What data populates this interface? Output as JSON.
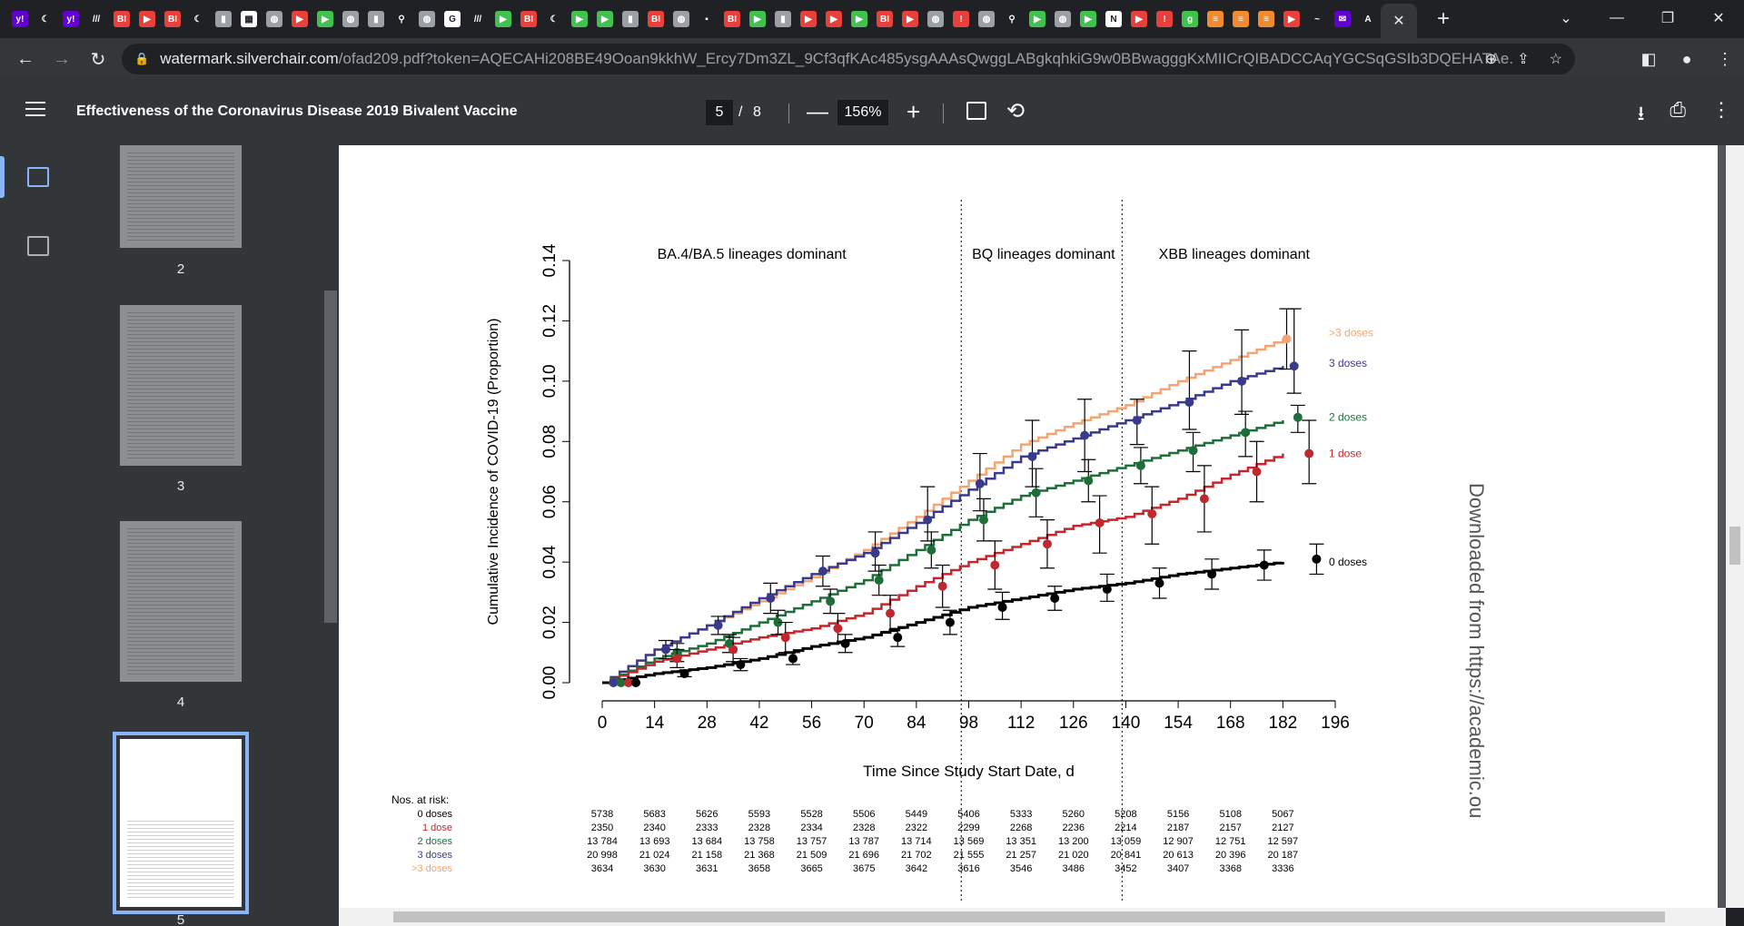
{
  "browser": {
    "tabs": [
      {
        "icon": "yahoo-icon",
        "color": "#6001d2",
        "glyph": "y!"
      },
      {
        "icon": "crescent-icon",
        "color": "#202124",
        "glyph": "☾"
      },
      {
        "icon": "yahoo-icon",
        "color": "#6001d2",
        "glyph": "y!"
      },
      {
        "icon": "stripes-icon",
        "color": "#202124",
        "glyph": "///"
      },
      {
        "icon": "business-insider-icon",
        "color": "#e8403a",
        "glyph": "BI"
      },
      {
        "icon": "youtube-icon",
        "color": "#e8403a",
        "glyph": "▶"
      },
      {
        "icon": "business-insider-icon",
        "color": "#e8403a",
        "glyph": "BI"
      },
      {
        "icon": "crescent-icon",
        "color": "#202124",
        "glyph": "☾"
      },
      {
        "icon": "bookmark-flag-icon",
        "color": "#9aa0a6",
        "glyph": "▮"
      },
      {
        "icon": "grid-icon",
        "color": "#ffffff",
        "glyph": "▦"
      },
      {
        "icon": "globe-icon",
        "color": "#9aa0a6",
        "glyph": "◍"
      },
      {
        "icon": "youtube-icon",
        "color": "#e8403a",
        "glyph": "▶"
      },
      {
        "icon": "play-icon",
        "color": "#41c24f",
        "glyph": "▶"
      },
      {
        "icon": "globe-icon",
        "color": "#9aa0a6",
        "glyph": "◍"
      },
      {
        "icon": "bookmark-flag-icon",
        "color": "#9aa0a6",
        "glyph": "▮"
      },
      {
        "icon": "search-icon",
        "color": "#202124",
        "glyph": "⚲"
      },
      {
        "icon": "globe-icon",
        "color": "#9aa0a6",
        "glyph": "◍"
      },
      {
        "icon": "google-icon",
        "color": "#ffffff",
        "glyph": "G"
      },
      {
        "icon": "stripes-icon",
        "color": "#202124",
        "glyph": "///"
      },
      {
        "icon": "play-icon",
        "color": "#41c24f",
        "glyph": "▶"
      },
      {
        "icon": "business-insider-icon",
        "color": "#e8403a",
        "glyph": "BI"
      },
      {
        "icon": "crescent-icon",
        "color": "#202124",
        "glyph": "☾"
      },
      {
        "icon": "play-icon",
        "color": "#41c24f",
        "glyph": "▶"
      },
      {
        "icon": "play-icon",
        "color": "#41c24f",
        "glyph": "▶"
      },
      {
        "icon": "bookmark-flag-icon",
        "color": "#9aa0a6",
        "glyph": "▮"
      },
      {
        "icon": "business-insider-icon",
        "color": "#e8403a",
        "glyph": "BI"
      },
      {
        "icon": "globe-icon",
        "color": "#9aa0a6",
        "glyph": "◍"
      },
      {
        "icon": "dark-tab-icon",
        "color": "#202124",
        "glyph": "▪"
      },
      {
        "icon": "business-insider-icon",
        "color": "#e8403a",
        "glyph": "BI"
      },
      {
        "icon": "play-icon",
        "color": "#41c24f",
        "glyph": "▶"
      },
      {
        "icon": "bookmark-flag-icon",
        "color": "#9aa0a6",
        "glyph": "▮"
      },
      {
        "icon": "youtube-icon",
        "color": "#e8403a",
        "glyph": "▶"
      },
      {
        "icon": "youtube-icon",
        "color": "#e8403a",
        "glyph": "▶"
      },
      {
        "icon": "play-icon",
        "color": "#41c24f",
        "glyph": "▶"
      },
      {
        "icon": "business-insider-icon",
        "color": "#e8403a",
        "glyph": "BI"
      },
      {
        "icon": "youtube-icon",
        "color": "#e8403a",
        "glyph": "▶"
      },
      {
        "icon": "globe-icon",
        "color": "#9aa0a6",
        "glyph": "◍"
      },
      {
        "icon": "alert-icon",
        "color": "#e8403a",
        "glyph": "!"
      },
      {
        "icon": "globe-icon",
        "color": "#9aa0a6",
        "glyph": "◍"
      },
      {
        "icon": "search-icon",
        "color": "#202124",
        "glyph": "⚲"
      },
      {
        "icon": "play-icon",
        "color": "#41c24f",
        "glyph": "▶"
      },
      {
        "icon": "globe-icon",
        "color": "#9aa0a6",
        "glyph": "◍"
      },
      {
        "icon": "play-icon",
        "color": "#41c24f",
        "glyph": "▶"
      },
      {
        "icon": "news-icon",
        "color": "#ffffff",
        "glyph": "N"
      },
      {
        "icon": "youtube-icon",
        "color": "#e8403a",
        "glyph": "▶"
      },
      {
        "icon": "alert-icon",
        "color": "#e8403a",
        "glyph": "!"
      },
      {
        "icon": "g-icon",
        "color": "#41c24f",
        "glyph": "g"
      },
      {
        "icon": "stack-icon",
        "color": "#f28b30",
        "glyph": "≡"
      },
      {
        "icon": "stack-icon",
        "color": "#f28b30",
        "glyph": "≡"
      },
      {
        "icon": "stack-icon",
        "color": "#f28b30",
        "glyph": "≡"
      },
      {
        "icon": "youtube-icon",
        "color": "#e8403a",
        "glyph": "▶"
      },
      {
        "icon": "swoosh-icon",
        "color": "#202124",
        "glyph": "~"
      },
      {
        "icon": "envelope-icon",
        "color": "#6001d2",
        "glyph": "✉"
      },
      {
        "icon": "font-icon",
        "color": "#202124",
        "glyph": "A"
      }
    ],
    "url_host": "watermark.silverchair.com",
    "url_rest": "/ofad209.pdf?token=AQECAHi208BE49Ooan9kkhW_Ercy7Dm3ZL_9Cf3qfKAc485ysgAAAsQwggLABgkqhkiG9w0BBwagggKxMIICrQIBADCCAqYGCSqGSIb3DQEHATAe..."
  },
  "pdf": {
    "title": "Effectiveness of the Coronavirus Disease 2019 Bivalent Vaccine",
    "page_current": "5",
    "page_sep": "/",
    "page_total": "8",
    "zoom": "156%",
    "thumbnails": [
      {
        "label": "2"
      },
      {
        "label": "3"
      },
      {
        "label": "4"
      },
      {
        "label": "5"
      }
    ]
  },
  "watermark": "Downloaded from https://academic.ou",
  "chart_data": {
    "type": "line",
    "title": "",
    "xlabel": "Time Since Study Start Date, d",
    "ylabel": "Cumulative Incidence of COVID-19 (Proportion)",
    "xlim": [
      0,
      196
    ],
    "ylim": [
      0,
      0.14
    ],
    "xticks": [
      "0",
      "14",
      "28",
      "42",
      "56",
      "70",
      "84",
      "98",
      "112",
      "126",
      "140",
      "154",
      "168",
      "182",
      "196"
    ],
    "yticks": [
      "0.00",
      "0.02",
      "0.04",
      "0.06",
      "0.08",
      "0.10",
      "0.12",
      "0.14"
    ],
    "periods": [
      {
        "label": "BA.4/BA.5 lineages dominant"
      },
      {
        "label": "BQ lineages dominant"
      },
      {
        "label": "XBB lineages dominant"
      }
    ],
    "period_boundaries": [
      96,
      139
    ],
    "series": [
      {
        "name": ">3 doses",
        "color": "#f4a470",
        "x": [
          0,
          14,
          28,
          42,
          56,
          70,
          84,
          98,
          112,
          126,
          140,
          154,
          168,
          182
        ],
        "y": [
          0.0,
          0.011,
          0.019,
          0.027,
          0.035,
          0.044,
          0.055,
          0.067,
          0.079,
          0.086,
          0.092,
          0.1,
          0.107,
          0.114
        ]
      },
      {
        "name": "3 doses",
        "color": "#3a3a8c",
        "x": [
          0,
          14,
          28,
          42,
          56,
          70,
          84,
          98,
          112,
          126,
          140,
          154,
          168,
          182
        ],
        "y": [
          0.0,
          0.011,
          0.019,
          0.028,
          0.036,
          0.043,
          0.053,
          0.064,
          0.075,
          0.081,
          0.087,
          0.093,
          0.1,
          0.105
        ]
      },
      {
        "name": "2 doses",
        "color": "#1e6e3a",
        "x": [
          0,
          14,
          28,
          42,
          56,
          70,
          84,
          98,
          112,
          126,
          140,
          154,
          168,
          182
        ],
        "y": [
          0.0,
          0.008,
          0.013,
          0.02,
          0.027,
          0.034,
          0.044,
          0.054,
          0.062,
          0.067,
          0.072,
          0.077,
          0.082,
          0.087
        ]
      },
      {
        "name": "1 dose",
        "color": "#c0282d",
        "x": [
          0,
          14,
          28,
          42,
          56,
          70,
          84,
          98,
          112,
          126,
          140,
          154,
          168,
          182
        ],
        "y": [
          0.0,
          0.007,
          0.011,
          0.015,
          0.018,
          0.023,
          0.032,
          0.04,
          0.046,
          0.052,
          0.055,
          0.061,
          0.069,
          0.076
        ]
      },
      {
        "name": "0 doses",
        "color": "#000000",
        "x": [
          0,
          14,
          28,
          42,
          56,
          70,
          84,
          98,
          112,
          126,
          140,
          154,
          168,
          182
        ],
        "y": [
          0.0,
          0.003,
          0.005,
          0.008,
          0.012,
          0.015,
          0.02,
          0.025,
          0.028,
          0.031,
          0.033,
          0.036,
          0.038,
          0.04
        ]
      }
    ],
    "point_estimates": [
      {
        "series": ">3 doses",
        "x": [
          183
        ],
        "y": [
          0.114
        ],
        "lo": [
          0.104
        ],
        "hi": [
          0.124
        ]
      },
      {
        "series": "3 doses",
        "x": [
          3,
          17,
          31,
          45,
          59,
          73,
          87,
          101,
          115,
          129,
          143,
          157,
          171,
          185
        ],
        "y": [
          0.0,
          0.011,
          0.019,
          0.028,
          0.037,
          0.043,
          0.054,
          0.066,
          0.075,
          0.082,
          0.087,
          0.093,
          0.1,
          0.105
        ],
        "lo": [
          0.0,
          0.008,
          0.016,
          0.023,
          0.032,
          0.037,
          0.047,
          0.057,
          0.065,
          0.07,
          0.079,
          0.084,
          0.089,
          0.096
        ],
        "hi": [
          0.0,
          0.014,
          0.022,
          0.033,
          0.042,
          0.05,
          0.065,
          0.076,
          0.087,
          0.094,
          0.094,
          0.11,
          0.117,
          0.124
        ]
      },
      {
        "series": "2 doses",
        "x": [
          5,
          20,
          34,
          47,
          61,
          74,
          88,
          102,
          116,
          130,
          144,
          158,
          172,
          186
        ],
        "y": [
          0.0,
          0.01,
          0.013,
          0.02,
          0.027,
          0.034,
          0.044,
          0.054,
          0.063,
          0.067,
          0.072,
          0.077,
          0.083,
          0.088
        ],
        "lo": [
          0.0,
          0.007,
          0.01,
          0.016,
          0.023,
          0.029,
          0.038,
          0.047,
          0.055,
          0.06,
          0.066,
          0.07,
          0.075,
          0.083
        ],
        "hi": [
          0.0,
          0.013,
          0.016,
          0.024,
          0.031,
          0.039,
          0.05,
          0.061,
          0.071,
          0.074,
          0.078,
          0.083,
          0.09,
          0.092
        ]
      },
      {
        "series": "1 dose",
        "x": [
          7,
          20,
          35,
          49,
          63,
          77,
          91,
          105,
          119,
          133,
          147,
          161,
          175,
          189
        ],
        "y": [
          0.0,
          0.008,
          0.011,
          0.015,
          0.018,
          0.023,
          0.032,
          0.039,
          0.046,
          0.053,
          0.056,
          0.061,
          0.07,
          0.076
        ],
        "lo": [
          0.0,
          0.005,
          0.007,
          0.01,
          0.013,
          0.017,
          0.025,
          0.031,
          0.038,
          0.043,
          0.046,
          0.05,
          0.06,
          0.066
        ],
        "hi": [
          0.0,
          0.011,
          0.015,
          0.02,
          0.023,
          0.029,
          0.039,
          0.047,
          0.054,
          0.062,
          0.065,
          0.072,
          0.08,
          0.087
        ]
      },
      {
        "series": "0 doses",
        "x": [
          9,
          22,
          37,
          51,
          65,
          79,
          93,
          107,
          121,
          135,
          149,
          163,
          177,
          191
        ],
        "y": [
          0.0,
          0.003,
          0.006,
          0.008,
          0.013,
          0.015,
          0.02,
          0.025,
          0.028,
          0.031,
          0.033,
          0.036,
          0.039,
          0.041
        ],
        "lo": [
          0.0,
          0.002,
          0.004,
          0.006,
          0.01,
          0.012,
          0.016,
          0.021,
          0.024,
          0.027,
          0.028,
          0.031,
          0.034,
          0.036
        ],
        "hi": [
          0.0,
          0.004,
          0.008,
          0.01,
          0.016,
          0.018,
          0.024,
          0.03,
          0.032,
          0.036,
          0.038,
          0.041,
          0.044,
          0.046
        ]
      }
    ],
    "legend": [
      {
        "name": ">3 doses",
        "color": "#f4a470",
        "y": 0.116
      },
      {
        "name": "3 doses",
        "color": "#3a3a8c",
        "y": 0.106
      },
      {
        "name": "2 doses",
        "color": "#1e6e3a",
        "y": 0.088
      },
      {
        "name": "1 dose",
        "color": "#c0282d",
        "y": 0.076
      },
      {
        "name": "0 doses",
        "color": "#000000",
        "y": 0.04
      }
    ],
    "risk_table": {
      "title": "Nos. at risk:",
      "times": [
        0,
        14,
        28,
        42,
        56,
        70,
        84,
        98,
        112,
        126,
        140,
        154,
        168,
        182
      ],
      "rows": [
        {
          "label": "0 doses",
          "color": "#000000",
          "values": [
            "5738",
            "5683",
            "5626",
            "5593",
            "5528",
            "5506",
            "5449",
            "5406",
            "5333",
            "5260",
            "5208",
            "5156",
            "5108",
            "5067"
          ]
        },
        {
          "label": "1 dose",
          "color": "#c0282d",
          "values": [
            "2350",
            "2340",
            "2333",
            "2328",
            "2334",
            "2328",
            "2322",
            "2299",
            "2268",
            "2236",
            "2214",
            "2187",
            "2157",
            "2127"
          ]
        },
        {
          "label": "2 doses",
          "color": "#1e6e3a",
          "values": [
            "13 784",
            "13 693",
            "13 684",
            "13 758",
            "13 757",
            "13 787",
            "13 714",
            "13 569",
            "13 351",
            "13 200",
            "13 059",
            "12 907",
            "12 751",
            "12 597"
          ]
        },
        {
          "label": "3 doses",
          "color": "#3a3a8c",
          "values": [
            "20 998",
            "21 024",
            "21 158",
            "21 368",
            "21 509",
            "21 696",
            "21 702",
            "21 555",
            "21 257",
            "21 020",
            "20 841",
            "20 613",
            "20 396",
            "20 187"
          ]
        },
        {
          "label": ">3 doses",
          "color": "#f4a470",
          "values": [
            "3634",
            "3630",
            "3631",
            "3658",
            "3665",
            "3675",
            "3642",
            "3616",
            "3546",
            "3486",
            "3452",
            "3407",
            "3368",
            "3336"
          ]
        }
      ]
    }
  }
}
